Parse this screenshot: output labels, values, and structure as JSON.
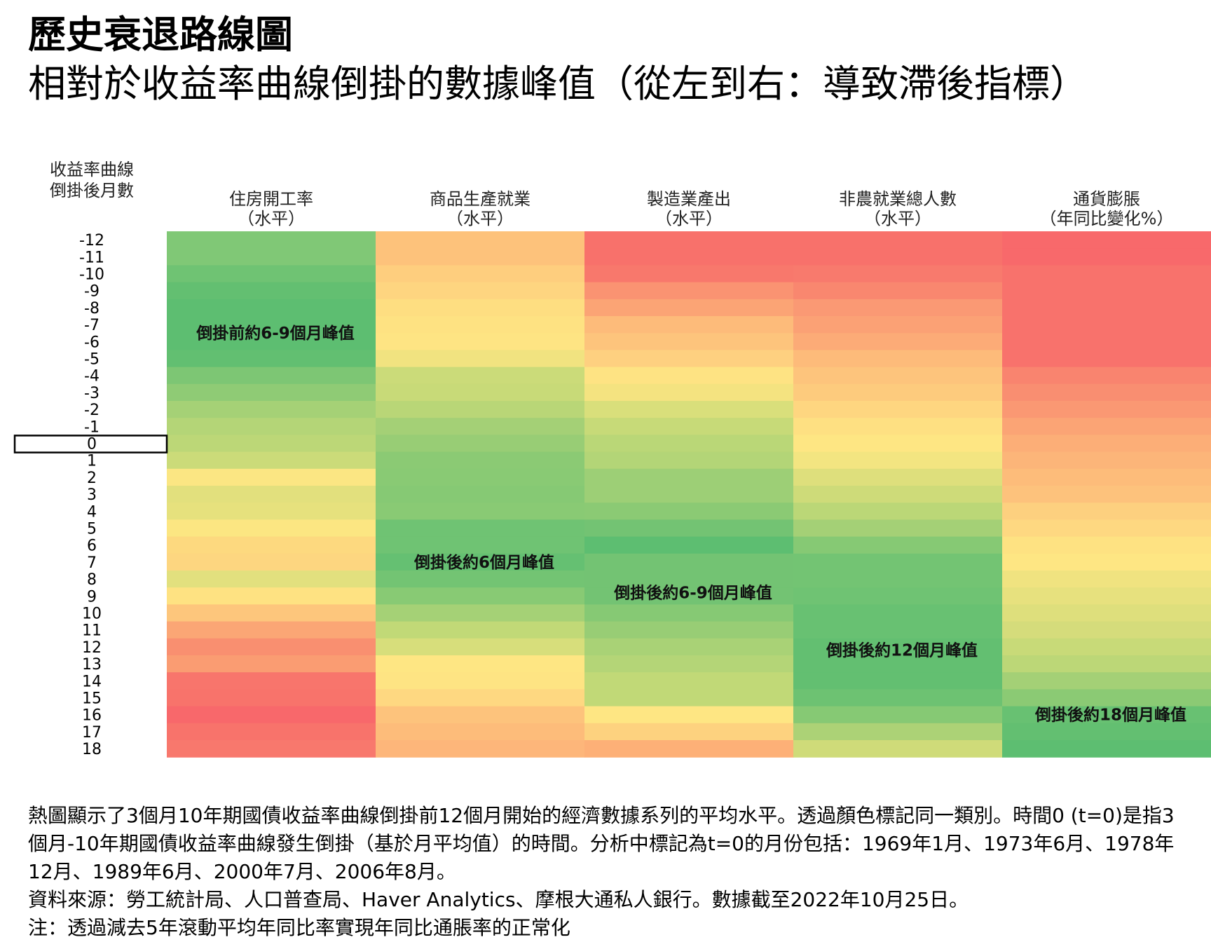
{
  "title": "歷史衰退路線圖",
  "subtitle": "相對於收益率曲線倒掛的數據峰值（從左到右：導致滯後指標）",
  "chart_data": {
    "type": "heatmap",
    "row_axis_label": [
      "收益率曲線",
      "倒掛後月數"
    ],
    "rows": [
      -12,
      -11,
      -10,
      -9,
      -8,
      -7,
      -6,
      -5,
      -4,
      -3,
      -2,
      -1,
      0,
      1,
      2,
      3,
      4,
      5,
      6,
      7,
      8,
      9,
      10,
      11,
      12,
      13,
      14,
      15,
      16,
      17,
      18
    ],
    "highlighted_row": 0,
    "columns": [
      {
        "name": "住房開工率",
        "sub": "（水平）",
        "annotation": "倒掛前約6-9個月峰值",
        "annotation_row": -6.5,
        "colors": [
          "#80c876",
          "#80c876",
          "#6fc373",
          "#63bf71",
          "#5dbe71",
          "#5dbe71",
          "#5dbe71",
          "#62bf71",
          "#7dc674",
          "#8fcb75",
          "#a5d176",
          "#b4d577",
          "#bcd777",
          "#cbdb79",
          "#fbe683",
          "#e2e07d",
          "#e6e17d",
          "#fce682",
          "#fdd97f",
          "#fdd680",
          "#e2e07e",
          "#fee282",
          "#fdc67c",
          "#fba675",
          "#f98f70",
          "#fa9c72",
          "#f8756c",
          "#f8736b",
          "#f8686b",
          "#f8736b",
          "#f8786d"
        ]
      },
      {
        "name": "商品生產就業",
        "sub": "（水平）",
        "annotation": "倒掛後約6個月峰值",
        "annotation_row": 7,
        "colors": [
          "#fdc27b",
          "#fdc27b",
          "#fece7e",
          "#fed580",
          "#fede81",
          "#fee282",
          "#fee483",
          "#f1e380",
          "#cbdb79",
          "#c8da78",
          "#b9d677",
          "#a4d076",
          "#98cd75",
          "#8bca74",
          "#89ca74",
          "#86c974",
          "#89ca74",
          "#6fc373",
          "#6fc373",
          "#65c072",
          "#73c473",
          "#88ca74",
          "#a5d176",
          "#c1d977",
          "#d7de7b",
          "#fee683",
          "#fee483",
          "#fed881",
          "#fdc37c",
          "#fdbc7a",
          "#fdb67a"
        ]
      },
      {
        "name": "製造業產出",
        "sub": "（水平）",
        "annotation": "倒掛後約6-9個月峰值",
        "annotation_row": 8.8,
        "colors": [
          "#f8716b",
          "#f8716b",
          "#f8786c",
          "#fa9372",
          "#fba475",
          "#fdbb7a",
          "#fdc47c",
          "#fed080",
          "#fee383",
          "#f4e380",
          "#d9df7b",
          "#c7da78",
          "#bad777",
          "#b3d577",
          "#9dcf76",
          "#9dcf76",
          "#8bca74",
          "#73c373",
          "#5dbe71",
          "#73c373",
          "#73c373",
          "#73c373",
          "#86c974",
          "#98cd75",
          "#a9d276",
          "#b4d577",
          "#c1d977",
          "#c1d977",
          "#fee683",
          "#fdd27f",
          "#fdb077"
        ]
      },
      {
        "name": "非農就業總人數",
        "sub": "（水平）",
        "annotation": "倒掛後約12個月峰值",
        "annotation_row": 12.2,
        "colors": [
          "#f8716b",
          "#f8716b",
          "#f87a6d",
          "#f9876f",
          "#fa9974",
          "#fba175",
          "#fcab77",
          "#fdbb7a",
          "#fdc47c",
          "#fdcb7d",
          "#fed680",
          "#fee082",
          "#fee683",
          "#f3e581",
          "#dedf7c",
          "#cedb79",
          "#bbd777",
          "#a4d076",
          "#86c974",
          "#73c473",
          "#73c473",
          "#6fc373",
          "#68c172",
          "#68c172",
          "#63bf71",
          "#63bf71",
          "#63bf71",
          "#6dc272",
          "#86c974",
          "#acd276",
          "#cfdb79"
        ]
      },
      {
        "name": "通貨膨脹",
        "sub": "（年同比變化%）",
        "annotation": "倒掛後約18個月峰值",
        "annotation_row": 16,
        "colors": [
          "#f8696b",
          "#f8696b",
          "#f8726c",
          "#f8726c",
          "#f8726c",
          "#f8726c",
          "#f8726c",
          "#f8726c",
          "#f9846f",
          "#f98e71",
          "#fa9873",
          "#fba475",
          "#fcae77",
          "#fcb579",
          "#fdbc7a",
          "#fdc27c",
          "#fdd07f",
          "#fed881",
          "#fee282",
          "#fee683",
          "#f0e380",
          "#e7e17e",
          "#dedf7c",
          "#d5dc7b",
          "#c8da78",
          "#bcd777",
          "#a4d076",
          "#8bca74",
          "#68c172",
          "#63bf71",
          "#5dbe71"
        ]
      }
    ]
  },
  "notes": [
    "熱圖顯示了3個月10年期國債收益率曲線倒掛前12個月開始的經濟數據系列的平均水平。透過顏色標記同一類別。時間0 (t=0)是指3個月-10年期國債收益率曲線發生倒掛（基於月平均值）的時間。分析中標記為t=0的月份包括：1969年1月、1973年6月、1978年12月、1989年6月、2000年7月、2006年8月。",
    "資料來源：勞工統計局、人口普查局、Haver Analytics、摩根大通私人銀行。數據截至2022年10月25日。",
    "注：透過減去5年滾動平均年同比率實現年同比通脹率的正常化"
  ]
}
